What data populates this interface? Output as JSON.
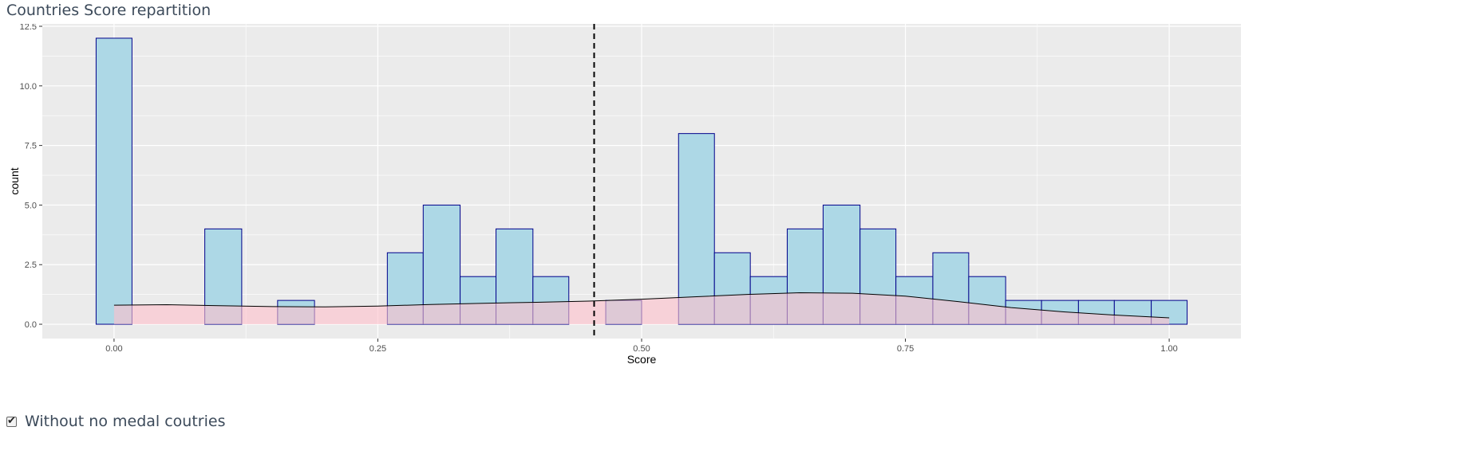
{
  "panel_title": "Countries Score repartition",
  "filter": {
    "label": "Without no medal coutries",
    "checked": true
  },
  "chart_data": {
    "type": "bar",
    "subtype": "histogram",
    "title": "",
    "xlabel": "Score",
    "ylabel": "count",
    "xlim": [
      -0.068,
      1.068
    ],
    "ylim": [
      -0.6,
      12.6
    ],
    "x_ticks": [
      0.0,
      0.25,
      0.5,
      0.75,
      1.0
    ],
    "x_tick_labels": [
      "0.00",
      "0.25",
      "0.50",
      "0.75",
      "1.00"
    ],
    "y_ticks": [
      0.0,
      2.5,
      5.0,
      7.5,
      10.0,
      12.5
    ],
    "y_tick_labels": [
      "0.0",
      "2.5",
      "5.0",
      "7.5",
      "10.0",
      "12.5"
    ],
    "grid": true,
    "bin_width": 0.0345,
    "bins": [
      {
        "x0": -0.017,
        "x1": 0.017,
        "count": 12
      },
      {
        "x0": 0.017,
        "x1": 0.052,
        "count": 0
      },
      {
        "x0": 0.052,
        "x1": 0.086,
        "count": 0
      },
      {
        "x0": 0.086,
        "x1": 0.121,
        "count": 4
      },
      {
        "x0": 0.121,
        "x1": 0.155,
        "count": 0
      },
      {
        "x0": 0.155,
        "x1": 0.19,
        "count": 1
      },
      {
        "x0": 0.19,
        "x1": 0.224,
        "count": 0
      },
      {
        "x0": 0.224,
        "x1": 0.259,
        "count": 0
      },
      {
        "x0": 0.259,
        "x1": 0.293,
        "count": 3
      },
      {
        "x0": 0.293,
        "x1": 0.328,
        "count": 5
      },
      {
        "x0": 0.328,
        "x1": 0.362,
        "count": 2
      },
      {
        "x0": 0.362,
        "x1": 0.397,
        "count": 4
      },
      {
        "x0": 0.397,
        "x1": 0.431,
        "count": 2
      },
      {
        "x0": 0.431,
        "x1": 0.466,
        "count": 0
      },
      {
        "x0": 0.466,
        "x1": 0.5,
        "count": 1
      },
      {
        "x0": 0.5,
        "x1": 0.535,
        "count": 0
      },
      {
        "x0": 0.535,
        "x1": 0.569,
        "count": 8
      },
      {
        "x0": 0.569,
        "x1": 0.603,
        "count": 3
      },
      {
        "x0": 0.603,
        "x1": 0.638,
        "count": 2
      },
      {
        "x0": 0.638,
        "x1": 0.672,
        "count": 4
      },
      {
        "x0": 0.672,
        "x1": 0.707,
        "count": 5
      },
      {
        "x0": 0.707,
        "x1": 0.741,
        "count": 4
      },
      {
        "x0": 0.741,
        "x1": 0.776,
        "count": 2
      },
      {
        "x0": 0.776,
        "x1": 0.81,
        "count": 3
      },
      {
        "x0": 0.81,
        "x1": 0.845,
        "count": 2
      },
      {
        "x0": 0.845,
        "x1": 0.879,
        "count": 1
      },
      {
        "x0": 0.879,
        "x1": 0.914,
        "count": 1
      },
      {
        "x0": 0.914,
        "x1": 0.948,
        "count": 1
      },
      {
        "x0": 0.948,
        "x1": 0.983,
        "count": 1
      },
      {
        "x0": 0.983,
        "x1": 1.017,
        "count": 1
      }
    ],
    "density_curve": [
      {
        "x": 0.0,
        "y": 0.8
      },
      {
        "x": 0.05,
        "y": 0.82
      },
      {
        "x": 0.1,
        "y": 0.78
      },
      {
        "x": 0.15,
        "y": 0.74
      },
      {
        "x": 0.2,
        "y": 0.73
      },
      {
        "x": 0.25,
        "y": 0.76
      },
      {
        "x": 0.3,
        "y": 0.83
      },
      {
        "x": 0.35,
        "y": 0.88
      },
      {
        "x": 0.4,
        "y": 0.92
      },
      {
        "x": 0.45,
        "y": 0.97
      },
      {
        "x": 0.5,
        "y": 1.05
      },
      {
        "x": 0.55,
        "y": 1.15
      },
      {
        "x": 0.6,
        "y": 1.25
      },
      {
        "x": 0.65,
        "y": 1.32
      },
      {
        "x": 0.7,
        "y": 1.3
      },
      {
        "x": 0.75,
        "y": 1.18
      },
      {
        "x": 0.8,
        "y": 0.95
      },
      {
        "x": 0.85,
        "y": 0.7
      },
      {
        "x": 0.9,
        "y": 0.52
      },
      {
        "x": 0.95,
        "y": 0.38
      },
      {
        "x": 1.0,
        "y": 0.27
      }
    ],
    "mean_line_x": 0.455,
    "colors": {
      "panel_bg": "#ebebeb",
      "grid": "#ffffff",
      "bar_fill": "#add8e6",
      "bar_stroke": "#00008b",
      "density_fill": "#ffc0cb",
      "density_alpha": 0.6,
      "density_line": "#000000",
      "mean_line": "#000000"
    }
  }
}
